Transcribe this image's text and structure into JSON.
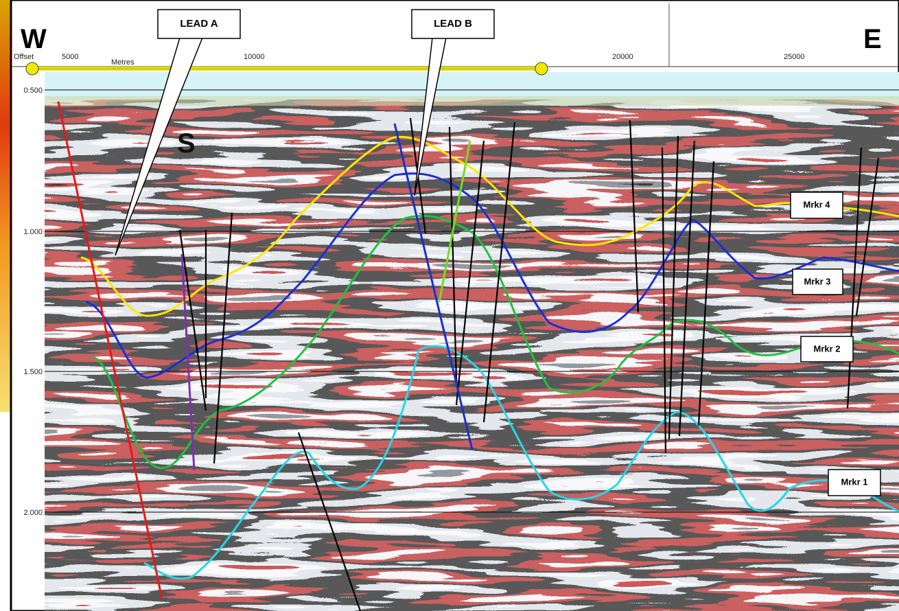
{
  "header": {
    "west": "W",
    "east": "E"
  },
  "axis": {
    "x_title": "Offset",
    "x_unit": "Metres",
    "x_ticks": [
      "5000",
      "10000",
      "20000",
      "25000"
    ],
    "y_ticks": [
      "0.500",
      "1.000",
      "1.500",
      "2.000"
    ]
  },
  "callouts": {
    "lead_a": "LEAD A",
    "lead_b": "LEAD B",
    "s": "S"
  },
  "markers": [
    "Mrkr 4",
    "Mrkr 3",
    "Mrkr 2",
    "Mrkr 1"
  ]
}
